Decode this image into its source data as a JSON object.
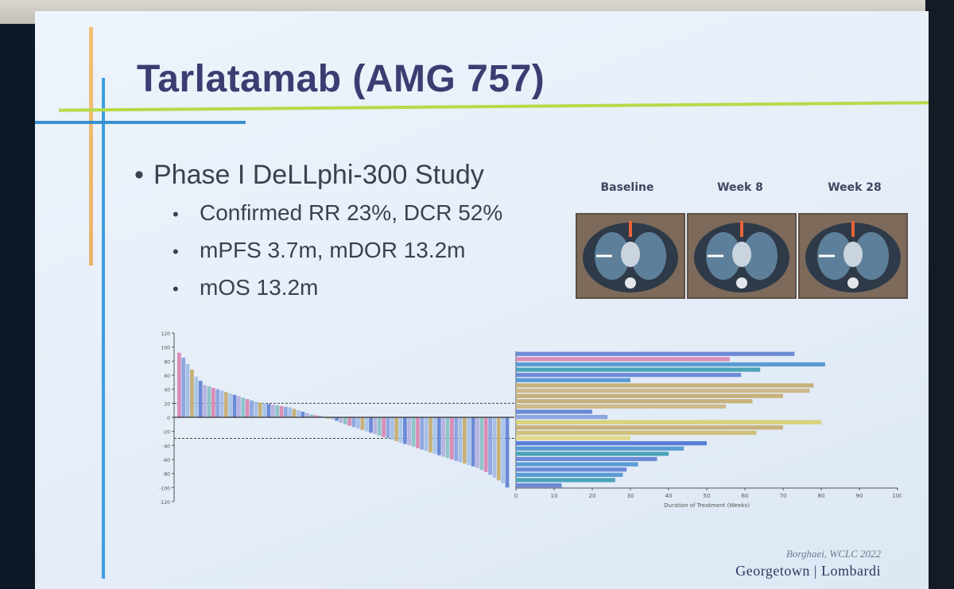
{
  "slide": {
    "title": "Tarlatamab (AMG 757)",
    "bullets": {
      "main": "Phase I DeLLphi-300 Study",
      "sub": [
        "Confirmed RR 23%, DCR 52%",
        "mPFS 3.7m, mDOR 13.2m",
        "mOS 13.2m"
      ]
    },
    "scans": {
      "labels": [
        "Baseline",
        "Week 8",
        "Week 28"
      ]
    },
    "citation": "Borghaei, WCLC 2022",
    "logo": "Georgetown | Lombardi"
  },
  "chart_data": [
    {
      "type": "bar",
      "ylim": [
        -120,
        120
      ],
      "yticks": [
        120,
        100,
        80,
        60,
        40,
        20,
        0,
        -20,
        -40,
        -60,
        -80,
        -100,
        -120
      ],
      "reference_lines": [
        20,
        -30
      ],
      "values": [
        92,
        85,
        76,
        68,
        58,
        52,
        46,
        44,
        42,
        40,
        38,
        36,
        34,
        32,
        30,
        28,
        26,
        24,
        22,
        21,
        20,
        19,
        18,
        17,
        16,
        15,
        14,
        12,
        10,
        8,
        6,
        4,
        3,
        2,
        1,
        -2,
        -3,
        -5,
        -8,
        -10,
        -12,
        -14,
        -16,
        -18,
        -20,
        -22,
        -24,
        -26,
        -28,
        -30,
        -32,
        -34,
        -36,
        -38,
        -40,
        -42,
        -44,
        -46,
        -48,
        -50,
        -52,
        -54,
        -56,
        -58,
        -60,
        -62,
        -64,
        -66,
        -68,
        -70,
        -72,
        -75,
        -78,
        -82,
        -86,
        -90,
        -94,
        -100
      ],
      "colors": [
        "#d98db7",
        "#8ea7e0",
        "#a7bfe6",
        "#c7b07a",
        "#a9c5e8",
        "#6c8ad6",
        "#b8b3e0",
        "#8fc4c9"
      ]
    },
    {
      "type": "bar",
      "orientation": "horizontal",
      "xlabel": "Duration of Treatment (Weeks)",
      "xlim": [
        0,
        100
      ],
      "xticks": [
        0,
        10,
        20,
        30,
        40,
        50,
        60,
        70,
        80,
        90,
        100
      ],
      "values": [
        73,
        56,
        81,
        64,
        59,
        30,
        78,
        77,
        70,
        62,
        55,
        20,
        24,
        80,
        70,
        63,
        30,
        50,
        44,
        40,
        37,
        32,
        29,
        28,
        26,
        12
      ],
      "colors": [
        "#6c8ad6",
        "#d98db7",
        "#5a9bd4",
        "#4aa3b8",
        "#6c8ad6",
        "#5a9bd4",
        "#c7b07a",
        "#d0b88a",
        "#c7b07a",
        "#c7b07a",
        "#d0b88a",
        "#6c8ad6",
        "#8ea7e0",
        "#d8d27a",
        "#c7b07a",
        "#d0c07a",
        "#e0d88a",
        "#5a7fd8",
        "#5a9bd4",
        "#4aa3b8",
        "#6c8ad6",
        "#5a9bd4",
        "#6c8ad6",
        "#5a9bd4",
        "#4aa3b8",
        "#6c8ad6"
      ]
    }
  ]
}
